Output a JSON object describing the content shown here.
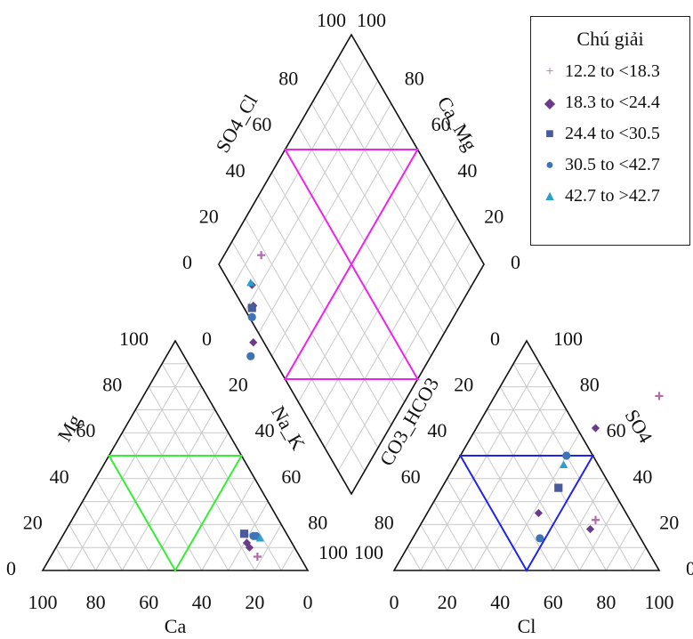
{
  "chart_data": {
    "type": "scatter",
    "subtype": "piper-diagram",
    "legend": {
      "title": "Chú giải",
      "placement": "top-right",
      "entries": [
        {
          "label": "12.2 to <18.3",
          "marker": "plus",
          "color": "#b26aa8"
        },
        {
          "label": "18.3 to <24.4",
          "marker": "diamond",
          "color": "#6b3a8a"
        },
        {
          "label": "24.4 to <30.5",
          "marker": "square",
          "color": "#4a5a9c"
        },
        {
          "label": "30.5 to <42.7",
          "marker": "circle",
          "color": "#3d74b5"
        },
        {
          "label": "42.7 to >42.7",
          "marker": "triangle",
          "color": "#2aa0cf"
        }
      ]
    },
    "axes": {
      "cation_bottom": {
        "label": "Ca",
        "ticks": [
          "100",
          "80",
          "60",
          "40",
          "20",
          "0"
        ]
      },
      "cation_left": {
        "label": "Mg",
        "ticks": [
          "0",
          "20",
          "40",
          "60",
          "80",
          "100"
        ]
      },
      "cation_right": {
        "label": "Na_K",
        "ticks": [
          "0",
          "20",
          "40",
          "60",
          "80",
          "100"
        ]
      },
      "anion_bottom": {
        "label": "Cl",
        "ticks": [
          "0",
          "20",
          "40",
          "60",
          "80",
          "100"
        ]
      },
      "anion_left": {
        "label": "CO3_HCO3",
        "ticks": [
          "100",
          "80",
          "60",
          "40",
          "20",
          "0"
        ]
      },
      "anion_right": {
        "label": "SO4",
        "ticks": [
          "100",
          "80",
          "60",
          "40",
          "20",
          "0"
        ]
      },
      "diamond_upper_left": {
        "label": "SO4_Cl",
        "ticks": [
          "0",
          "20",
          "40",
          "60",
          "80",
          "100"
        ]
      },
      "diamond_upper_right": {
        "label": "Ca_Mg",
        "ticks": [
          "100",
          "80",
          "60",
          "40",
          "20",
          "0"
        ]
      }
    },
    "grid": true,
    "overlays": {
      "cation_triangle_color": "#33ee33",
      "anion_triangle_color": "#2222ee",
      "diamond_hourglass_color": "#ee22ee"
    },
    "cation_points": [
      {
        "class": 0,
        "ca": 16,
        "mg": 6
      },
      {
        "class": 1,
        "ca": 17,
        "mg": 10
      },
      {
        "class": 1,
        "ca": 17,
        "mg": 12
      },
      {
        "class": 2,
        "ca": 16,
        "mg": 16
      },
      {
        "class": 3,
        "ca": 13,
        "mg": 15
      },
      {
        "class": 3,
        "ca": 12,
        "mg": 15
      },
      {
        "class": 4,
        "ca": 11,
        "mg": 14
      }
    ],
    "anion_points": [
      {
        "class": 0,
        "cl": 62,
        "so4": 76
      },
      {
        "class": 0,
        "cl": 65,
        "so4": 22
      },
      {
        "class": 1,
        "cl": 45,
        "so4": 62
      },
      {
        "class": 1,
        "cl": 42,
        "so4": 25
      },
      {
        "class": 1,
        "cl": 65,
        "so4": 18
      },
      {
        "class": 2,
        "cl": 44,
        "so4": 36
      },
      {
        "class": 3,
        "cl": 40,
        "so4": 50
      },
      {
        "class": 3,
        "cl": 48,
        "so4": 14
      },
      {
        "class": 4,
        "cl": 41,
        "so4": 46
      }
    ],
    "diamond_points": [
      {
        "class": 0,
        "so4_cl": 86,
        "ca_mg": 18
      },
      {
        "class": 1,
        "so4_cl": 83,
        "ca_mg": 8
      },
      {
        "class": 1,
        "so4_cl": 78,
        "ca_mg": 4
      },
      {
        "class": 1,
        "so4_cl": 70,
        "ca_mg": -4
      },
      {
        "class": 2,
        "so4_cl": 78,
        "ca_mg": 3
      },
      {
        "class": 3,
        "so4_cl": 76,
        "ca_mg": 1
      },
      {
        "class": 3,
        "so4_cl": 68,
        "ca_mg": -8
      },
      {
        "class": 4,
        "so4_cl": 84,
        "ca_mg": 8
      }
    ]
  }
}
